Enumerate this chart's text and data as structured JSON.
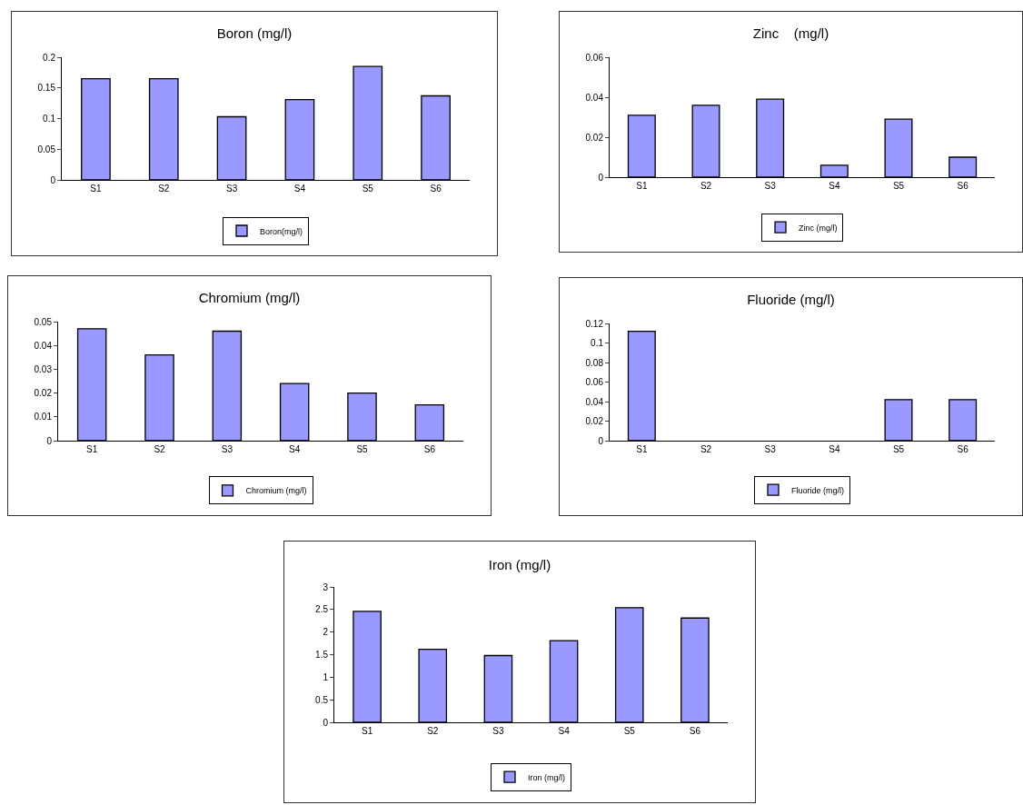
{
  "chart_data": [
    {
      "type": "bar",
      "title": "Boron (mg/l)",
      "categories": [
        "S1",
        "S2",
        "S3",
        "S4",
        "S5",
        "S6"
      ],
      "series": [
        {
          "name": "Boron(mg/l)",
          "color": "#9999ff",
          "values": [
            0.165,
            0.165,
            0.103,
            0.131,
            0.185,
            0.137
          ]
        }
      ],
      "ylim": [
        0,
        0.2
      ],
      "yticks": [
        0,
        0.05,
        0.1,
        0.15,
        0.2
      ],
      "grid": false,
      "legend": "bottom"
    },
    {
      "type": "bar",
      "title": "Zinc    (mg/l)",
      "categories": [
        "S1",
        "S2",
        "S3",
        "S4",
        "S5",
        "S6"
      ],
      "series": [
        {
          "name": "Zinc (mg/l)",
          "color": "#9999ff",
          "values": [
            0.031,
            0.036,
            0.039,
            0.006,
            0.029,
            0.01
          ]
        }
      ],
      "ylim": [
        0,
        0.06
      ],
      "yticks": [
        0,
        0.02,
        0.04,
        0.06
      ],
      "grid": false,
      "legend": "bottom"
    },
    {
      "type": "bar",
      "title": "Chromium (mg/l)",
      "categories": [
        "S1",
        "S2",
        "S3",
        "S4",
        "S5",
        "S6"
      ],
      "series": [
        {
          "name": "Chromium (mg/l)",
          "color": "#9999ff",
          "values": [
            0.047,
            0.036,
            0.046,
            0.024,
            0.02,
            0.015
          ]
        }
      ],
      "ylim": [
        0,
        0.05
      ],
      "yticks": [
        0,
        0.01,
        0.02,
        0.03,
        0.04,
        0.05
      ],
      "grid": false,
      "legend": "bottom"
    },
    {
      "type": "bar",
      "title": "Fluoride (mg/l)",
      "categories": [
        "S1",
        "S2",
        "S3",
        "S4",
        "S5",
        "S6"
      ],
      "series": [
        {
          "name": "Fluoride (mg/l)",
          "color": "#9999ff",
          "values": [
            0.112,
            null,
            null,
            null,
            0.042,
            0.042
          ]
        }
      ],
      "ylim": [
        0,
        0.12
      ],
      "yticks": [
        0,
        0.02,
        0.04,
        0.06,
        0.08,
        0.1,
        0.12
      ],
      "grid": false,
      "legend": "bottom"
    },
    {
      "type": "bar",
      "title": "Iron (mg/l)",
      "categories": [
        "S1",
        "S2",
        "S3",
        "S4",
        "S5",
        "S6"
      ],
      "series": [
        {
          "name": "Iron (mg/l)",
          "color": "#9999ff",
          "values": [
            2.46,
            1.62,
            1.48,
            1.81,
            2.54,
            2.31
          ]
        }
      ],
      "ylim": [
        0,
        3
      ],
      "yticks": [
        0,
        0.5,
        1,
        1.5,
        2,
        2.5,
        3
      ],
      "grid": false,
      "legend": "bottom"
    }
  ]
}
